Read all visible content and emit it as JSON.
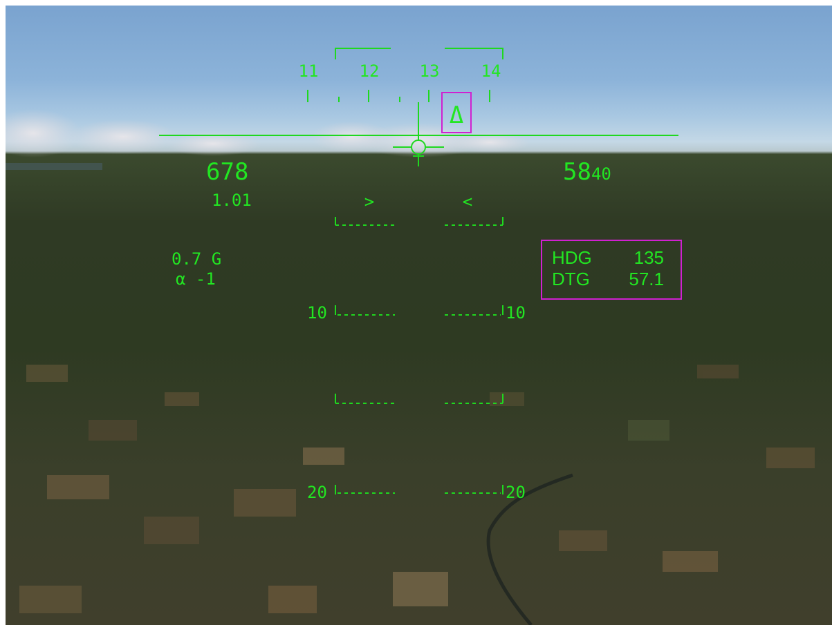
{
  "hud": {
    "heading_tape": [
      "11",
      "12",
      "13",
      "14"
    ],
    "airspeed": "678",
    "mach": "1.01",
    "altitude_major": "58",
    "altitude_minor": "40",
    "g_load": "0.7 G",
    "alpha": "α -1",
    "pitch_ladder": [
      {
        "left": "10",
        "right": "10"
      },
      {
        "left": "20",
        "right": "20"
      }
    ],
    "nav_box": {
      "hdg_label": "HDG",
      "hdg_value": "135",
      "dtg_label": "DTG",
      "dtg_value": "57.1"
    },
    "waypoint_marker": "Δ",
    "chevron_left": ">",
    "chevron_right": "<"
  },
  "colors": {
    "hud_symbology": "#22e622",
    "nav_highlight": "#d020d0"
  }
}
